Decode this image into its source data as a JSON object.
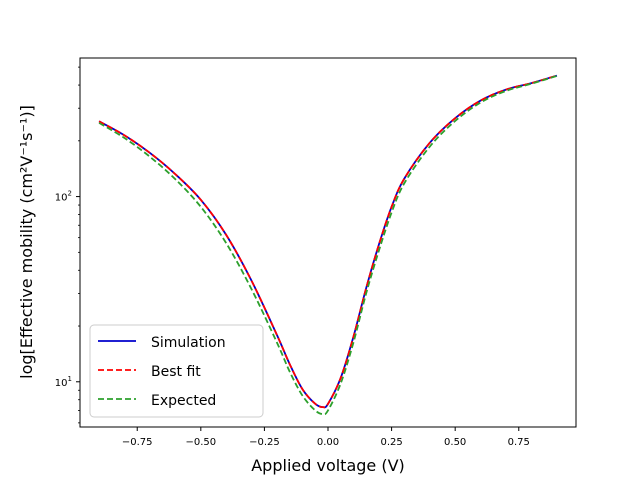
{
  "chart_data": {
    "type": "line",
    "xlabel": "Applied voltage (V)",
    "ylabel": "log[Effective mobility (cm²V⁻¹s⁻¹)]",
    "xlim": [
      -0.975,
      0.975
    ],
    "ylim": [
      5.7,
      560
    ],
    "yscale": "log",
    "grid": false,
    "legend_position": "lower-left",
    "x_ticks": [
      {
        "value": -0.75,
        "label": "−0.75"
      },
      {
        "value": -0.5,
        "label": "−0.50"
      },
      {
        "value": -0.25,
        "label": "−0.25"
      },
      {
        "value": 0.0,
        "label": "0.00"
      },
      {
        "value": 0.25,
        "label": "0.25"
      },
      {
        "value": 0.5,
        "label": "0.50"
      },
      {
        "value": 0.75,
        "label": "0.75"
      }
    ],
    "y_ticks": [
      {
        "value": 10,
        "base": "10",
        "exp": "1"
      },
      {
        "value": 100,
        "base": "10",
        "exp": "2"
      }
    ],
    "x": [
      -0.9,
      -0.8,
      -0.7,
      -0.6,
      -0.5,
      -0.4,
      -0.3,
      -0.2,
      -0.15,
      -0.1,
      -0.05,
      -0.02,
      0.0,
      0.05,
      0.1,
      0.15,
      0.2,
      0.25,
      0.3,
      0.4,
      0.5,
      0.6,
      0.7,
      0.8,
      0.9
    ],
    "series": [
      {
        "name": "Simulation",
        "color": "#0000cc",
        "dash": "solid",
        "values": [
          255,
          214,
          172,
          132,
          96,
          62,
          35,
          17.8,
          12.4,
          9.1,
          7.6,
          7.3,
          7.6,
          10.5,
          17.5,
          32,
          55,
          88,
          125,
          195,
          265,
          330,
          378,
          410,
          450
        ]
      },
      {
        "name": "Best fit",
        "color": "#ff0000",
        "dash": "dashed",
        "values": [
          255,
          214,
          172,
          132,
          96,
          62,
          35,
          17.8,
          12.4,
          9.1,
          7.6,
          7.3,
          7.6,
          10.5,
          17.5,
          32,
          55,
          88,
          125,
          195,
          265,
          330,
          378,
          410,
          450
        ]
      },
      {
        "name": "Expected",
        "color": "#2ca02c",
        "dash": "dashed",
        "values": [
          250,
          207,
          164,
          124,
          88,
          56,
          31.5,
          16.2,
          11.3,
          8.4,
          7.0,
          6.7,
          7.0,
          9.8,
          16.3,
          30,
          51,
          82,
          118,
          186,
          256,
          322,
          372,
          407,
          448
        ]
      }
    ]
  }
}
